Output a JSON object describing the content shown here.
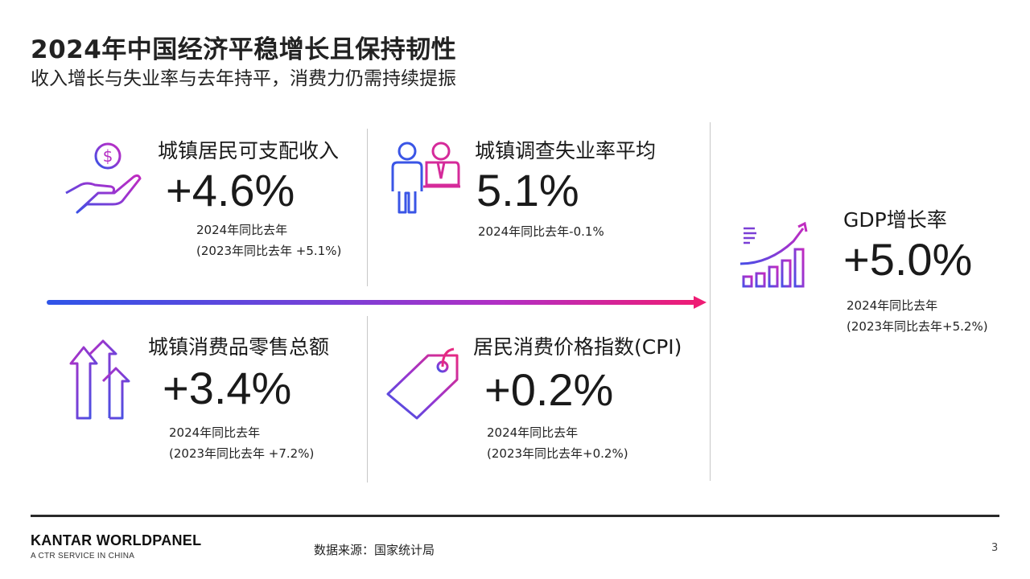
{
  "header": {
    "title": "2024年中国经济平稳增长且保持韧性",
    "subtitle": "收入增长与失业率与去年持平，消费力仍需持续提振"
  },
  "cards": {
    "income": {
      "icon": "money-hand-icon",
      "label": "城镇居民可支配收入",
      "value": "+4.6%",
      "note1": "2024年同比去年",
      "note2": "(2023年同比去年 +5.1%)"
    },
    "unemployment": {
      "icon": "workers-icon",
      "label": "城镇调查失业率平均",
      "value": "5.1%",
      "note1": "2024年同比去年-0.1%"
    },
    "retail": {
      "icon": "up-arrows-icon",
      "label": "城镇消费品零售总额",
      "value": "+3.4%",
      "note1": "2024年同比去年",
      "note2": "(2023年同比去年 +7.2%)"
    },
    "cpi": {
      "icon": "price-tag-icon",
      "label": "居民消费价格指数(CPI)",
      "value": "+0.2%",
      "note1": "2024年同比去年",
      "note2": "(2023年同比去年+0.2%)"
    },
    "gdp": {
      "icon": "growth-chart-icon",
      "label": "GDP增长率",
      "value": "+5.0%",
      "note1": "2024年同比去年",
      "note2": "(2023年同比去年+5.2%)"
    }
  },
  "colors": {
    "gradient_start": "#2f55e8",
    "gradient_mid": "#8a3ad4",
    "gradient_end": "#ee1c74"
  },
  "footer": {
    "brand": "KANTAR WORLDPANEL",
    "brand_sub": "A CTR SERVICE IN CHINA",
    "source": "数据来源：国家统计局",
    "page": "3"
  }
}
